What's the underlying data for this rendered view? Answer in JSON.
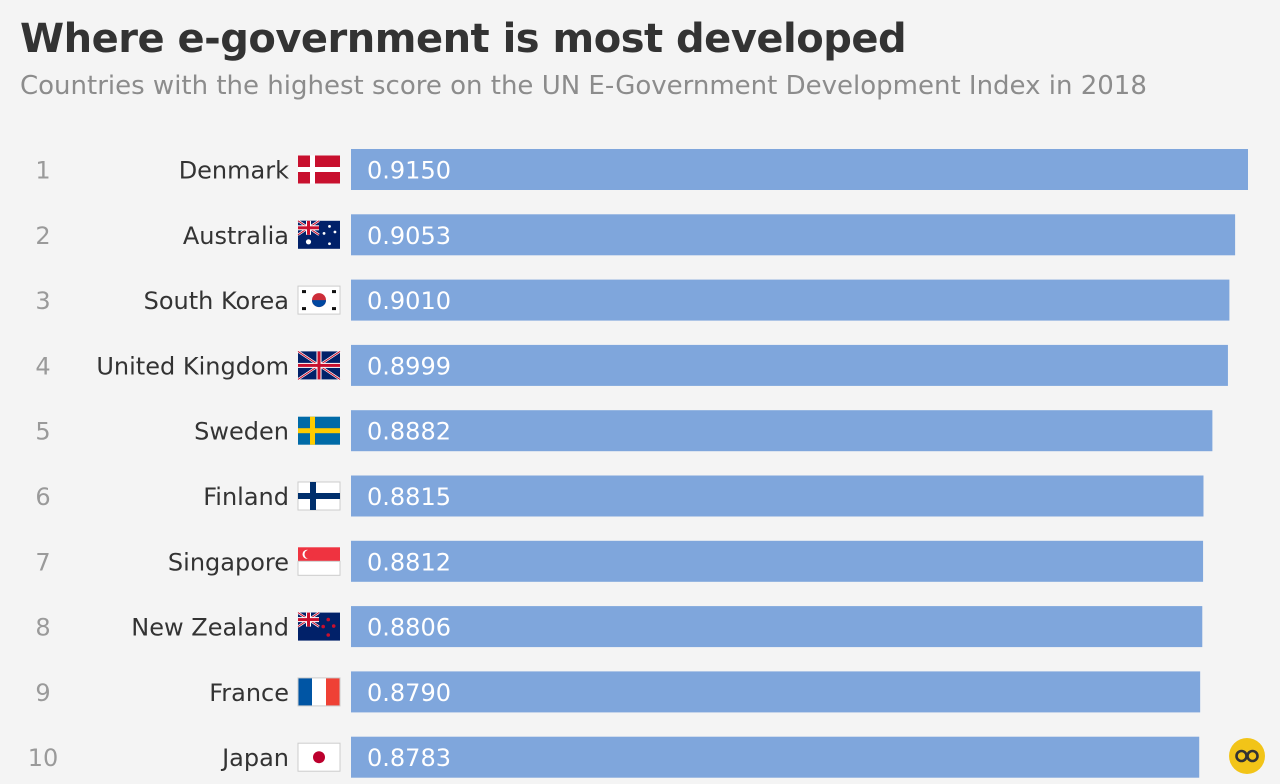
{
  "header": {
    "title": "Where e-government is most developed",
    "subtitle": "Countries with the highest score on the UN E-Government Development Index in 2018"
  },
  "colors": {
    "bar": "#7fa6dc",
    "value_text": "#ffffff",
    "label_text": "#333333",
    "rank_text": "#9a9a9a",
    "logo": "#f2c418"
  },
  "logo_icon": "statista-infinity-logo",
  "chart_data": {
    "type": "bar",
    "orientation": "horizontal",
    "title": "Where e-government is most developed",
    "subtitle": "Countries with the highest score on the UN E-Government Development Index in 2018",
    "ranks": [
      "1",
      "2",
      "3",
      "4",
      "5",
      "6",
      "7",
      "8",
      "9",
      "10"
    ],
    "categories": [
      "Denmark",
      "Australia",
      "South Korea",
      "United Kingdom",
      "Sweden",
      "Finland",
      "Singapore",
      "New Zealand",
      "France",
      "Japan"
    ],
    "flags": [
      "denmark-flag-icon",
      "australia-flag-icon",
      "south-korea-flag-icon",
      "united-kingdom-flag-icon",
      "sweden-flag-icon",
      "finland-flag-icon",
      "singapore-flag-icon",
      "new-zealand-flag-icon",
      "france-flag-icon",
      "japan-flag-icon"
    ],
    "values": [
      0.915,
      0.9053,
      0.901,
      0.8999,
      0.8882,
      0.8815,
      0.8812,
      0.8806,
      0.879,
      0.8783
    ],
    "value_labels": [
      "0.9150",
      "0.9053",
      "0.9010",
      "0.8999",
      "0.8882",
      "0.8815",
      "0.8812",
      "0.8806",
      "0.8790",
      "0.8783"
    ],
    "xlim": [
      0.24,
      0.915
    ],
    "grid": false,
    "legend": "none"
  }
}
